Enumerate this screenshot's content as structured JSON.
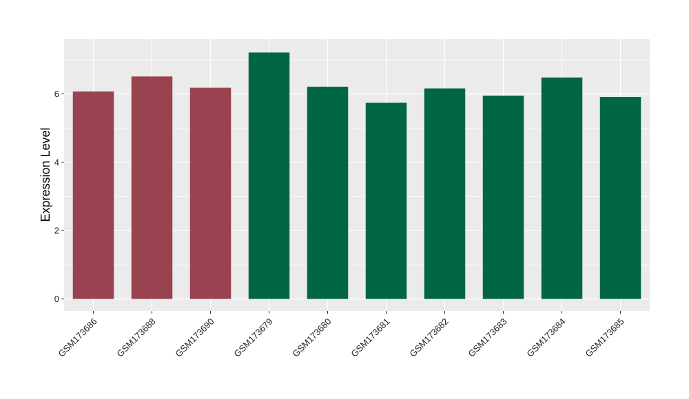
{
  "chart_data": {
    "type": "bar",
    "ylabel": "Expression Level",
    "xlabel": "",
    "categories": [
      "GSM173686",
      "GSM173688",
      "GSM173690",
      "GSM173679",
      "GSM173680",
      "GSM173681",
      "GSM173682",
      "GSM173683",
      "GSM173684",
      "GSM173685"
    ],
    "values": [
      6.07,
      6.51,
      6.18,
      7.21,
      6.21,
      5.74,
      6.16,
      5.95,
      6.48,
      5.91
    ],
    "groups": [
      "a",
      "a",
      "a",
      "b",
      "b",
      "b",
      "b",
      "b",
      "b",
      "b"
    ],
    "group_colors": {
      "a": "#994350",
      "b": "#006644"
    },
    "ylim": [
      -0.35,
      7.6
    ],
    "yticks": [
      0,
      2,
      4,
      6
    ],
    "grid": true,
    "panel_background": "#ebebeb",
    "legend": "none"
  }
}
